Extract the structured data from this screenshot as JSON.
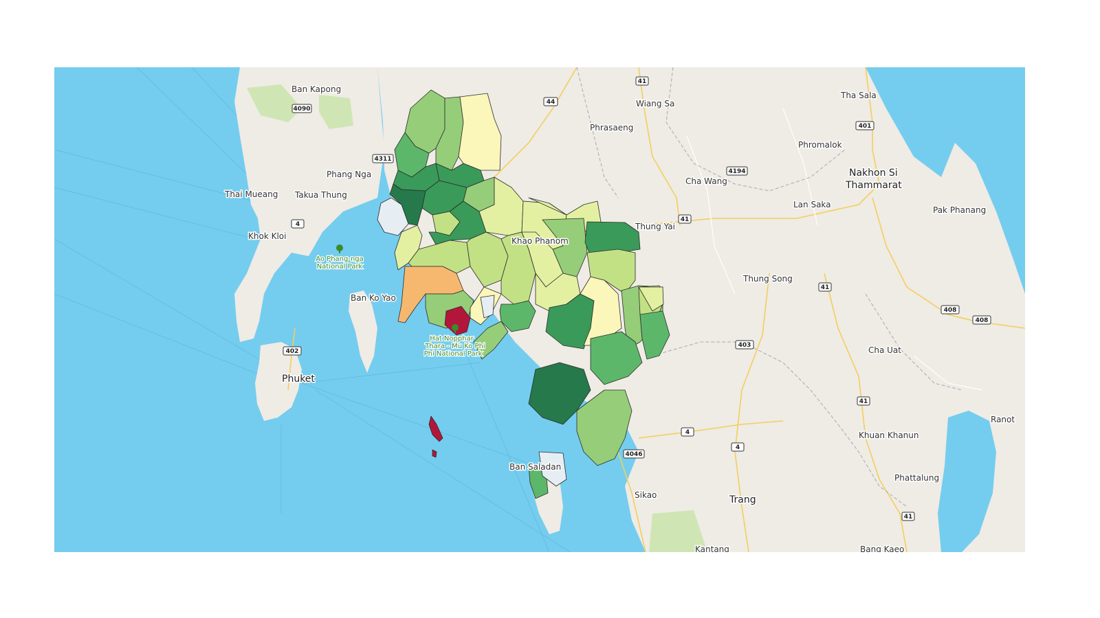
{
  "map": {
    "colors": {
      "water": "#74cdee",
      "land": "#efebe5",
      "park": "#cfe6b4",
      "road_major": "#f3cf5c",
      "boundary": "#a8a8b6",
      "choropleth_scale": [
        "#b2173b",
        "#f6b86f",
        "#fbf6b9",
        "#e3f0a2",
        "#c2e185",
        "#96cd79",
        "#5db76a",
        "#3a9a59",
        "#26794a",
        "#e6eef4"
      ]
    },
    "places": {
      "ban_kapong": "Ban Kapong",
      "tha_sala": "Tha Sala",
      "wiang_sa": "Wiang Sa",
      "phrasaeng": "Phrasaeng",
      "phromalok": "Phromalok",
      "phang_nga": "Phang Nga",
      "nakhon_si_1": "Nakhon Si",
      "nakhon_si_2": "Thammarat",
      "thai_mueang": "Thai Mueang",
      "takua_thung": "Takua Thung",
      "cha_wang": "Cha Wang",
      "lan_saka": "Lan Saka",
      "pak_phanang": "Pak Phanang",
      "khok_kloi": "Khok Kloi",
      "thung_yai": "Thung Yai",
      "khao_phanom": "Khao Phanom",
      "thung_song": "Thung Song",
      "ban_ko_yao": "Ban Ko Yao",
      "cha_uat": "Cha Uat",
      "phuket": "Phuket",
      "ranot": "Ranot",
      "khuan_khanun": "Khuan Khanun",
      "ban_saladan": "Ban Saladan",
      "phattalung": "Phattalung",
      "sikao": "Sikao",
      "trang": "Trang",
      "kantang": "Kantang",
      "bang_kaeo": "Bang Kaeo"
    },
    "parks": {
      "ao_phang_nga_1": "Ao Phang-nga",
      "ao_phang_nga_2": "National Park",
      "hat_noppharat_1": "Hat Nopphar",
      "hat_noppharat_2": "Thara - Mu Ko Phi",
      "hat_noppharat_3": "Phi National Park"
    },
    "roads": [
      "4090",
      "44",
      "41",
      "401",
      "4311",
      "4194",
      "4",
      "41",
      "41",
      "41",
      "402",
      "403",
      "408",
      "408",
      "4",
      "4",
      "41",
      "4046",
      "4",
      "44"
    ]
  }
}
